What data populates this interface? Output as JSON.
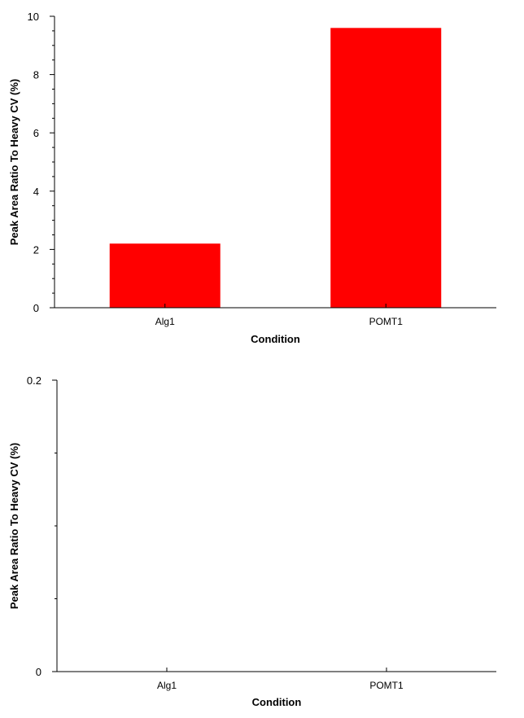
{
  "chart_data": [
    {
      "type": "bar",
      "categories": [
        "Alg1",
        "POMT1"
      ],
      "values": [
        2.2,
        9.6
      ],
      "xlabel": "Condition",
      "ylabel": "Peak Area Ratio To Heavy CV (%)",
      "ylim": [
        0,
        10
      ],
      "yticks": [
        0,
        2,
        4,
        6,
        8,
        10
      ],
      "grid": false,
      "legend": "none",
      "bar_color": "#ff0000"
    },
    {
      "type": "bar",
      "categories": [
        "Alg1",
        "POMT1"
      ],
      "values": [
        0,
        0
      ],
      "xlabel": "Condition",
      "ylabel": "Peak Area Ratio To Heavy CV (%)",
      "ylim": [
        0,
        0.2
      ],
      "yticks": [
        0,
        0.2
      ],
      "grid": false,
      "legend": "none",
      "bar_color": "#ff0000"
    }
  ]
}
